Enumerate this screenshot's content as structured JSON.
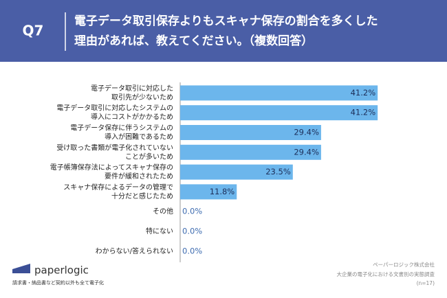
{
  "header": {
    "question": "Q7",
    "title_lines": [
      "電子データ取引保存よりもスキャナ保存の割合を多くした",
      "理由があれば、教えてください。（複数回答）"
    ]
  },
  "chart_data": {
    "type": "bar",
    "orientation": "horizontal",
    "categories": [
      "電子データ取引に対応した\n取引先が少ないため",
      "電子データ取引に対応したシステムの\n導入にコストがかかるため",
      "電子データ保存に伴うシステムの\n導入が困難であるため",
      "受け取った書類が電子化されていない\nことが多いため",
      "電子帳簿保存法によってスキャナ保存の\n要件が緩和されたため",
      "スキャナ保存によるデータの管理で\n十分だと感じたため",
      "その他",
      "特にない",
      "わからない/答えられない"
    ],
    "values": [
      41.2,
      41.2,
      29.4,
      29.4,
      23.5,
      11.8,
      0.0,
      0.0,
      0.0
    ],
    "value_labels": [
      "41.2%",
      "41.2%",
      "29.4%",
      "29.4%",
      "23.5%",
      "11.8%",
      "0.0%",
      "0.0%",
      "0.0%"
    ],
    "color": "#6cb6ec"
  },
  "footer": {
    "logo": "paperlogic",
    "tagline": "請求書・納品書など契約以外も全て電子化",
    "source_lines": [
      "ペーパーロジック株式会社",
      "大企業の電子化における文書別の実態調査",
      "(n=17)"
    ]
  }
}
